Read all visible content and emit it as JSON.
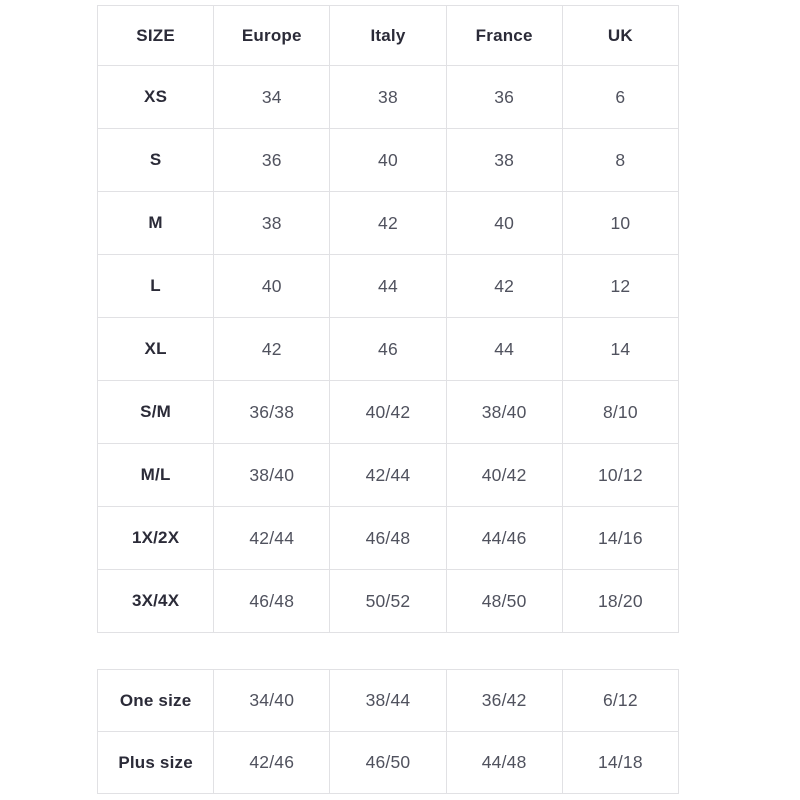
{
  "colors": {
    "background": "#ffffff",
    "border": "#e1e1e4",
    "header_text": "#2b2b38",
    "cell_text": "#50525e"
  },
  "chart_data": {
    "type": "table",
    "title": "",
    "tables": [
      {
        "name": "standard-sizes",
        "columns": [
          "SIZE",
          "Europe",
          "Italy",
          "France",
          "UK"
        ],
        "rows": [
          [
            "XS",
            "34",
            "38",
            "36",
            "6"
          ],
          [
            "S",
            "36",
            "40",
            "38",
            "8"
          ],
          [
            "M",
            "38",
            "42",
            "40",
            "10"
          ],
          [
            "L",
            "40",
            "44",
            "42",
            "12"
          ],
          [
            "XL",
            "42",
            "46",
            "44",
            "14"
          ],
          [
            "S/M",
            "36/38",
            "40/42",
            "38/40",
            "8/10"
          ],
          [
            "M/L",
            "38/40",
            "42/44",
            "40/42",
            "10/12"
          ],
          [
            "1X/2X",
            "42/44",
            "46/48",
            "44/46",
            "14/16"
          ],
          [
            "3X/4X",
            "46/48",
            "50/52",
            "48/50",
            "18/20"
          ]
        ]
      },
      {
        "name": "special-sizes",
        "rows": [
          [
            "One size",
            "34/40",
            "38/44",
            "36/42",
            "6/12"
          ],
          [
            "Plus size",
            "42/46",
            "46/50",
            "44/48",
            "14/18"
          ]
        ]
      }
    ]
  }
}
